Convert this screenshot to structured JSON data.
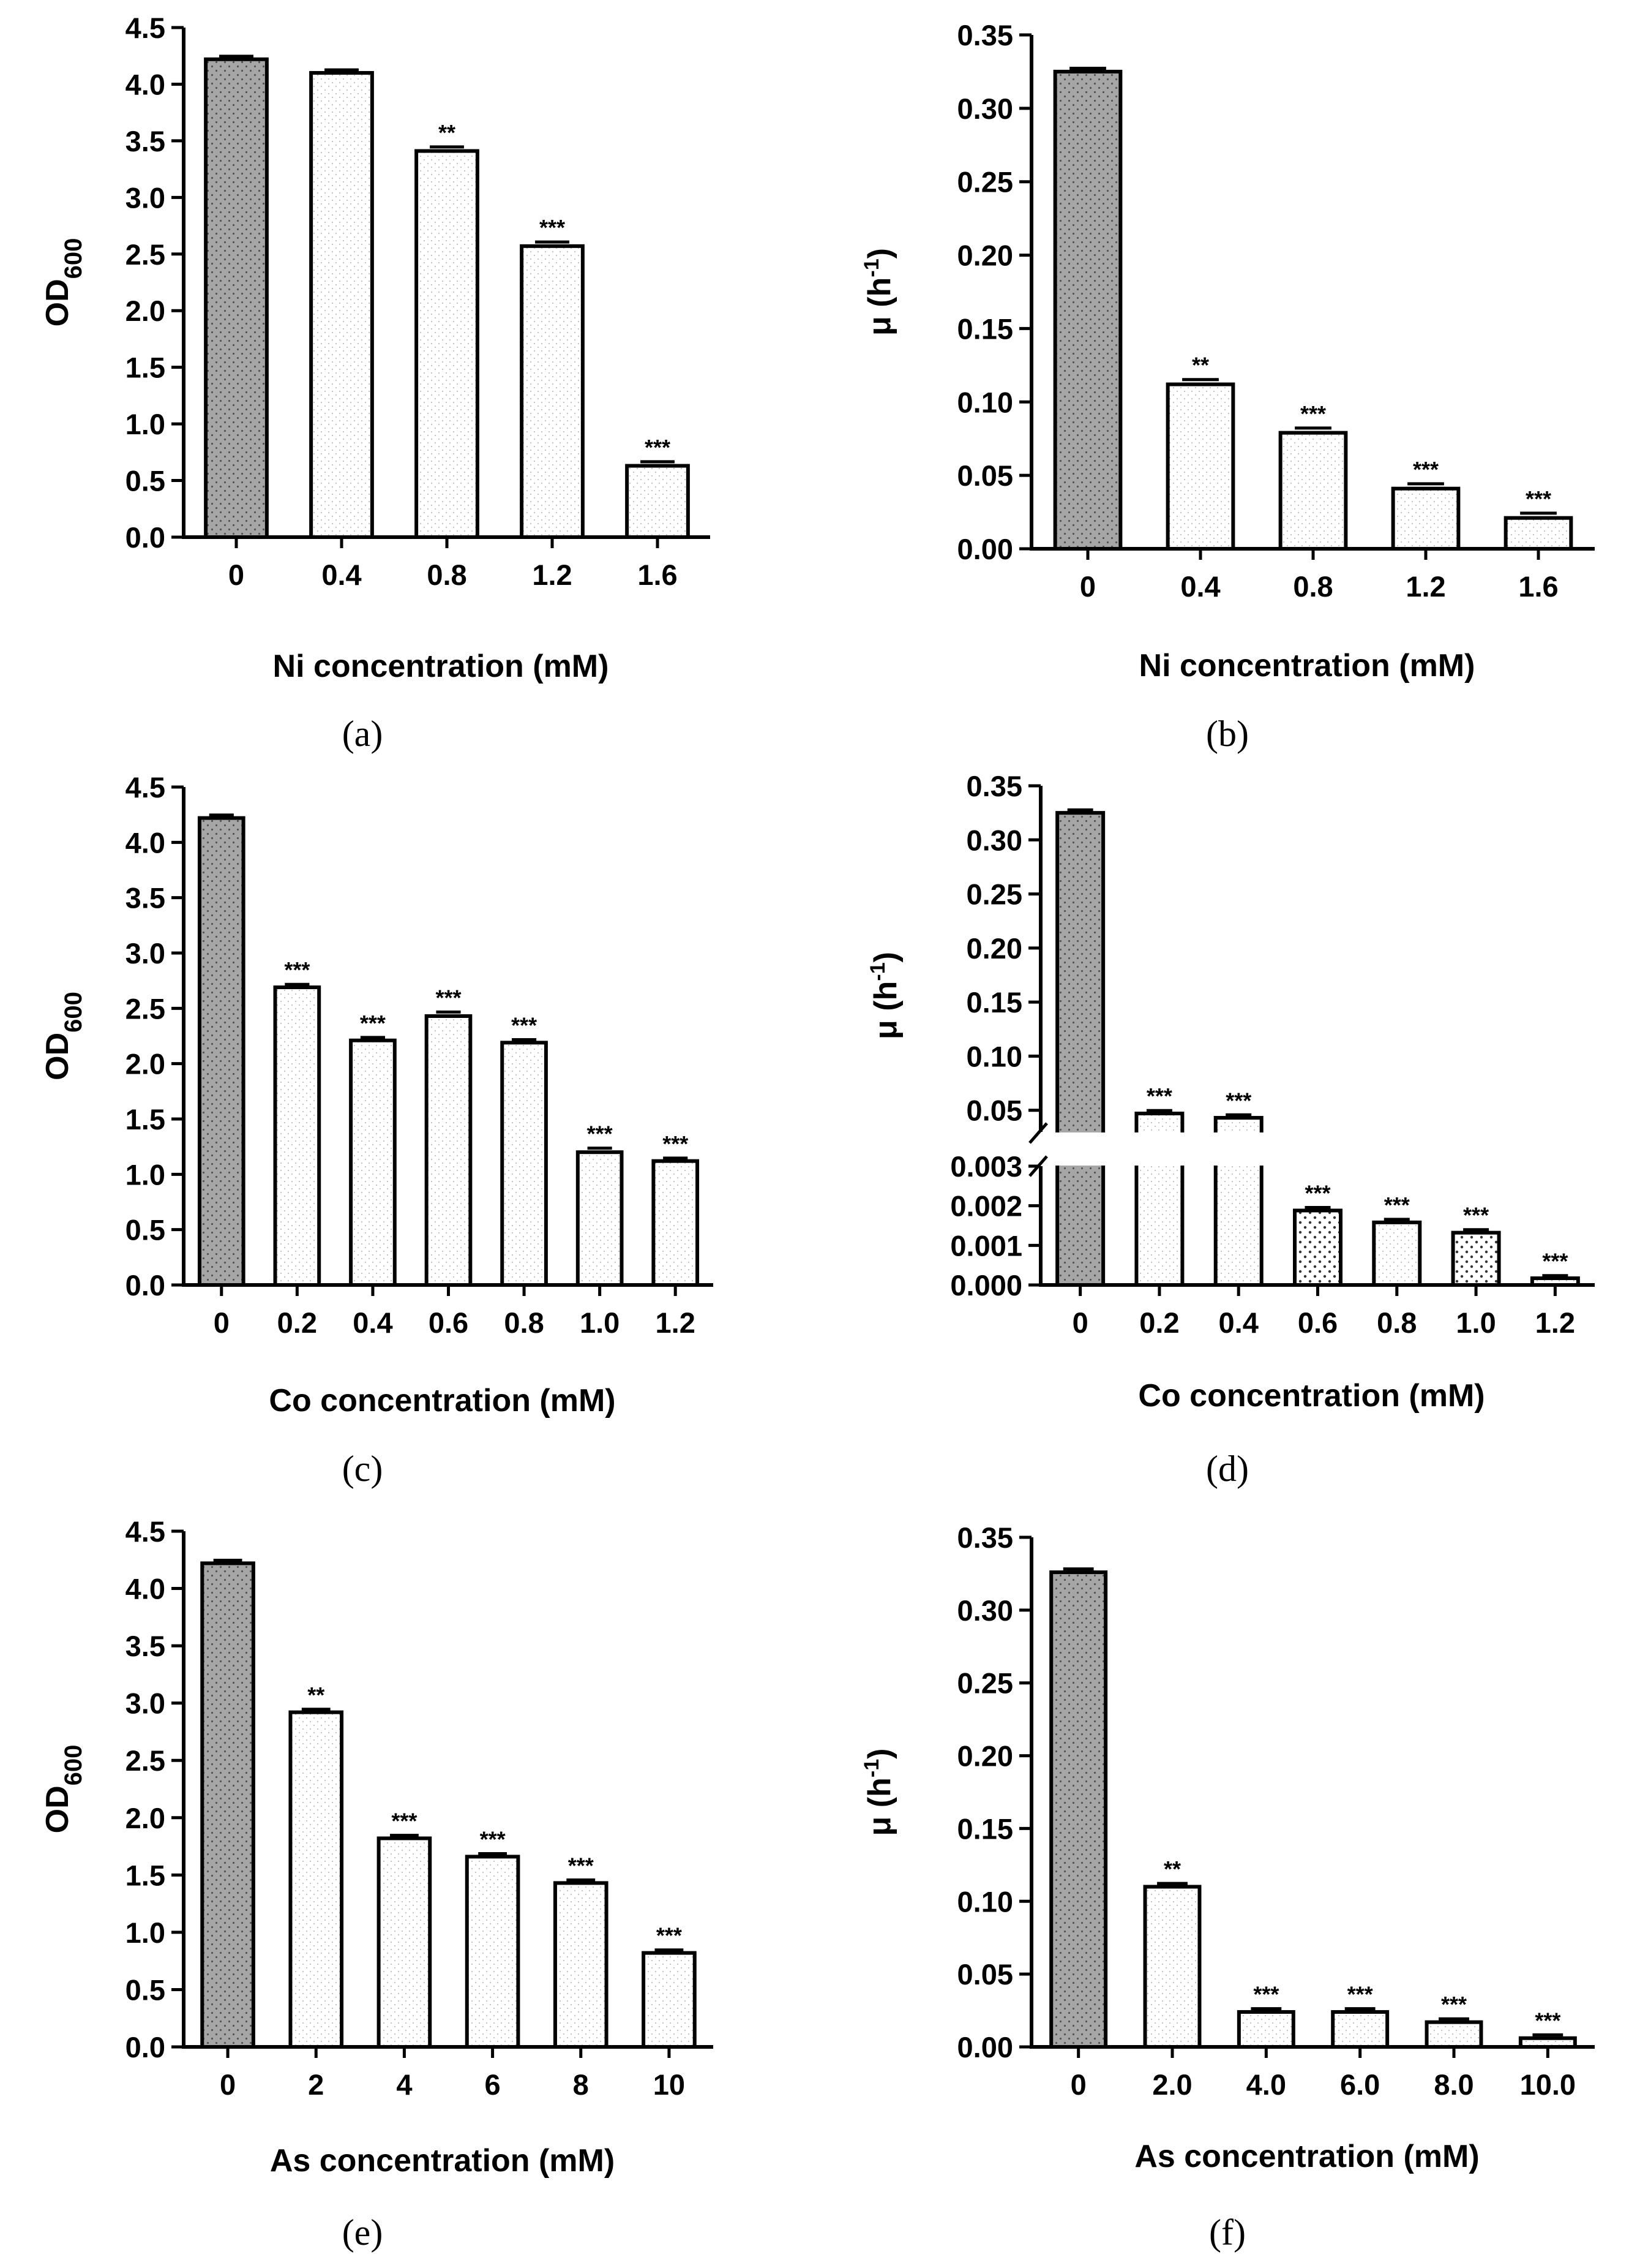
{
  "colors": {
    "control_fill": "#a6a6a6",
    "treated_fill": "#ffffff",
    "stroke": "#000000"
  },
  "chart_data": [
    {
      "id": "a",
      "type": "bar",
      "caption": "(a)",
      "xlabel": "Ni concentration (mM)",
      "ylabel_main": "OD",
      "ylabel_sub": "600",
      "ylim": [
        0,
        4.5
      ],
      "yticks": [
        "0.0",
        "0.5",
        "1.0",
        "1.5",
        "2.0",
        "2.5",
        "3.0",
        "3.5",
        "4.0",
        "4.5"
      ],
      "categories": [
        "0",
        "0.4",
        "0.8",
        "1.2",
        "1.6"
      ],
      "values": [
        4.22,
        4.1,
        3.41,
        2.57,
        0.63
      ],
      "errors": [
        0.01,
        0.01,
        0.02,
        0.02,
        0.02
      ],
      "significance": [
        "",
        "",
        "**",
        "***",
        "***"
      ],
      "bar_patterns": [
        "dense",
        "light",
        "light",
        "light",
        "light"
      ]
    },
    {
      "id": "b",
      "type": "bar",
      "caption": "(b)",
      "xlabel": "Ni concentration (mM)",
      "ylabel_main": "μ (h",
      "ylabel_sup": "-1",
      "ylabel_end": ")",
      "ylim": [
        0,
        0.35
      ],
      "yticks": [
        "0.00",
        "0.05",
        "0.10",
        "0.15",
        "0.20",
        "0.25",
        "0.30",
        "0.35"
      ],
      "categories": [
        "0",
        "0.4",
        "0.8",
        "1.2",
        "1.6"
      ],
      "values": [
        0.325,
        0.112,
        0.079,
        0.041,
        0.021
      ],
      "errors": [
        0.001,
        0.002,
        0.002,
        0.002,
        0.002
      ],
      "significance": [
        "",
        "**",
        "***",
        "***",
        "***"
      ],
      "bar_patterns": [
        "dense",
        "light",
        "light",
        "light",
        "light"
      ]
    },
    {
      "id": "c",
      "type": "bar",
      "caption": "(c)",
      "xlabel": "Co concentration (mM)",
      "ylabel_main": "OD",
      "ylabel_sub": "600",
      "ylim": [
        0,
        4.5
      ],
      "yticks": [
        "0.0",
        "0.5",
        "1.0",
        "1.5",
        "2.0",
        "2.5",
        "3.0",
        "3.5",
        "4.0",
        "4.5"
      ],
      "categories": [
        "0",
        "0.2",
        "0.4",
        "0.6",
        "0.8",
        "1.0",
        "1.2"
      ],
      "values": [
        4.22,
        2.69,
        2.21,
        2.43,
        2.19,
        1.2,
        1.12
      ],
      "errors": [
        0.01,
        0.01,
        0.01,
        0.02,
        0.01,
        0.02,
        0.01
      ],
      "significance": [
        "",
        "***",
        "***",
        "***",
        "***",
        "***",
        "***"
      ],
      "bar_patterns": [
        "dense",
        "light",
        "light",
        "light",
        "light",
        "light",
        "light"
      ]
    },
    {
      "id": "d",
      "type": "bar",
      "caption": "(d)",
      "broken_axis": true,
      "xlabel": "Co concentration (mM)",
      "ylabel_main": "μ (h",
      "ylabel_sup": "-1",
      "ylabel_end": ")",
      "ylim_lower": [
        0,
        0.003
      ],
      "ylim_upper": [
        0.03,
        0.35
      ],
      "yticks_lower": [
        "0.000",
        "0.001",
        "0.002",
        "0.003"
      ],
      "yticks_upper": [
        "0.05",
        "0.10",
        "0.15",
        "0.20",
        "0.25",
        "0.30",
        "0.35"
      ],
      "categories": [
        "0",
        "0.2",
        "0.4",
        "0.6",
        "0.8",
        "1.0",
        "1.2"
      ],
      "values": [
        0.325,
        0.047,
        0.043,
        0.00188,
        0.00158,
        0.00132,
        0.00017
      ],
      "errors": [
        0.001,
        0.001,
        0.001,
        3e-05,
        3e-05,
        3e-05,
        2e-05
      ],
      "significance": [
        "",
        "***",
        "***",
        "***",
        "***",
        "***",
        "***"
      ],
      "bar_patterns": [
        "dense",
        "light",
        "light",
        "coarse",
        "light",
        "coarse",
        "light"
      ]
    },
    {
      "id": "e",
      "type": "bar",
      "caption": "(e)",
      "xlabel": "As concentration (mM)",
      "ylabel_main": "OD",
      "ylabel_sub": "600",
      "ylim": [
        0,
        4.5
      ],
      "yticks": [
        "0.0",
        "0.5",
        "1.0",
        "1.5",
        "2.0",
        "2.5",
        "3.0",
        "3.5",
        "4.0",
        "4.5"
      ],
      "categories": [
        "0",
        "2",
        "4",
        "6",
        "8",
        "10"
      ],
      "values": [
        4.22,
        2.92,
        1.82,
        1.66,
        1.43,
        0.82
      ],
      "errors": [
        0.01,
        0.01,
        0.01,
        0.01,
        0.01,
        0.01
      ],
      "significance": [
        "",
        "**",
        "***",
        "***",
        "***",
        "***"
      ],
      "bar_patterns": [
        "dense",
        "light",
        "light",
        "light",
        "light",
        "light"
      ]
    },
    {
      "id": "f",
      "type": "bar",
      "caption": "(f)",
      "xlabel": "As concentration (mM)",
      "ylabel_main": "μ (h",
      "ylabel_sup": "-1",
      "ylabel_end": ")",
      "ylim": [
        0,
        0.35
      ],
      "yticks": [
        "0.00",
        "0.05",
        "0.10",
        "0.15",
        "0.20",
        "0.25",
        "0.30",
        "0.35"
      ],
      "categories": [
        "0",
        "2.0",
        "4.0",
        "6.0",
        "8.0",
        "10.0"
      ],
      "values": [
        0.326,
        0.11,
        0.024,
        0.024,
        0.017,
        0.006
      ],
      "errors": [
        0.001,
        0.001,
        0.001,
        0.001,
        0.001,
        0.001
      ],
      "significance": [
        "",
        "**",
        "***",
        "***",
        "***",
        "***"
      ],
      "bar_patterns": [
        "dense",
        "light",
        "light",
        "light",
        "light",
        "light"
      ]
    }
  ]
}
